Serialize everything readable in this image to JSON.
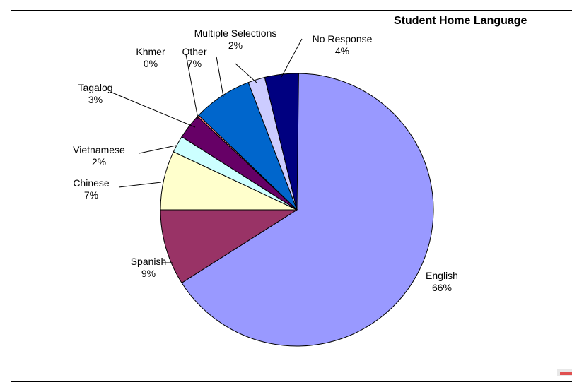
{
  "chart_data": {
    "type": "pie",
    "title": "Student Home Language",
    "slices": [
      {
        "label": "English",
        "percent_label": "66%",
        "value": 66,
        "color": "#9999ff"
      },
      {
        "label": "Spanish",
        "percent_label": "9%",
        "value": 9,
        "color": "#993366"
      },
      {
        "label": "Chinese",
        "percent_label": "7%",
        "value": 7,
        "color": "#ffffcc"
      },
      {
        "label": "Vietnamese",
        "percent_label": "2%",
        "value": 2,
        "color": "#ccffff"
      },
      {
        "label": "Tagalog",
        "percent_label": "3%",
        "value": 3,
        "color": "#660066"
      },
      {
        "label": "Khmer",
        "percent_label": "0%",
        "value": 0,
        "color": "#ff8080"
      },
      {
        "label": "Other",
        "percent_label": "7%",
        "value": 7,
        "color": "#0066cc"
      },
      {
        "label": "Multiple Selections",
        "percent_label": "2%",
        "value": 2,
        "color": "#ccccff"
      },
      {
        "label": "No Response",
        "percent_label": "4%",
        "value": 4,
        "color": "#000080"
      }
    ]
  }
}
